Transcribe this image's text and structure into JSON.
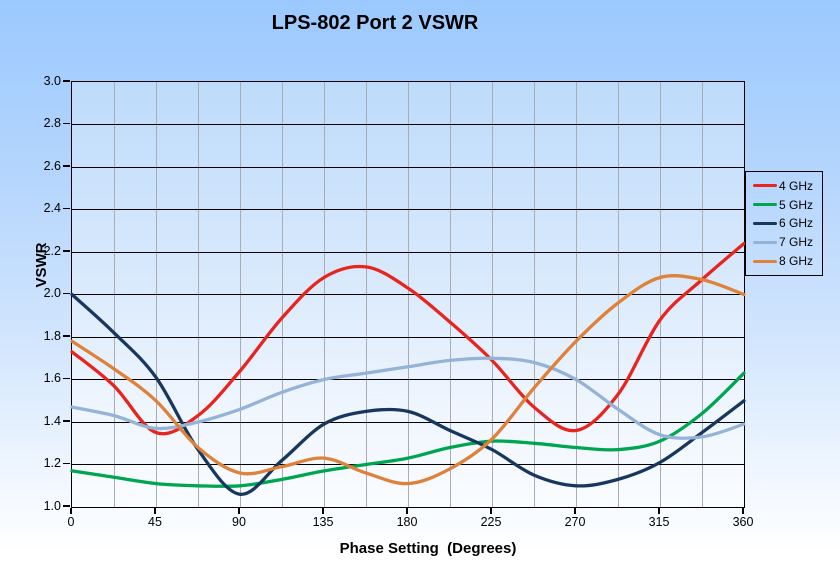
{
  "title": "LPS-802 Port 2 VSWR",
  "chart_data": {
    "type": "line",
    "title": "LPS-802 Port 2 VSWR",
    "xlabel": "Phase Setting  (Degrees)",
    "ylabel": "VSWR",
    "xlim": [
      0,
      360
    ],
    "ylim": [
      1.0,
      3.0
    ],
    "x_tick_labels": [
      0,
      45,
      90,
      135,
      180,
      225,
      270,
      315,
      360
    ],
    "y_tick_step": 0.2,
    "x_minor_grid_step_degrees": 22.5,
    "grid": "horizontal-black, vertical-gray",
    "legend_position": "right-outside",
    "x": [
      0,
      22.5,
      45,
      67.5,
      90,
      112.5,
      135,
      157.5,
      180,
      202.5,
      225,
      247.5,
      270,
      292.5,
      315,
      337.5,
      360
    ],
    "series": [
      {
        "name": "4 GHz",
        "color": "#e8241f",
        "values": [
          1.73,
          1.57,
          1.35,
          1.43,
          1.64,
          1.89,
          2.08,
          2.13,
          2.03,
          1.87,
          1.69,
          1.47,
          1.36,
          1.53,
          1.88,
          2.07,
          2.24
        ]
      },
      {
        "name": "5 GHz",
        "color": "#00a550",
        "values": [
          1.17,
          1.14,
          1.11,
          1.1,
          1.1,
          1.13,
          1.17,
          1.2,
          1.23,
          1.28,
          1.31,
          1.3,
          1.28,
          1.27,
          1.31,
          1.44,
          1.63
        ]
      },
      {
        "name": "6 GHz",
        "color": "#17375d",
        "values": [
          2.0,
          1.82,
          1.61,
          1.27,
          1.06,
          1.22,
          1.39,
          1.45,
          1.45,
          1.36,
          1.27,
          1.15,
          1.1,
          1.13,
          1.21,
          1.35,
          1.5
        ]
      },
      {
        "name": "7 GHz",
        "color": "#95b3d7",
        "values": [
          1.47,
          1.43,
          1.37,
          1.4,
          1.46,
          1.54,
          1.6,
          1.63,
          1.66,
          1.69,
          1.7,
          1.68,
          1.6,
          1.46,
          1.34,
          1.33,
          1.39
        ]
      },
      {
        "name": "8 GHz",
        "color": "#de823b",
        "values": [
          1.78,
          1.65,
          1.5,
          1.28,
          1.16,
          1.19,
          1.23,
          1.16,
          1.11,
          1.18,
          1.32,
          1.56,
          1.78,
          1.96,
          2.08,
          2.07,
          2.0
        ]
      }
    ]
  }
}
